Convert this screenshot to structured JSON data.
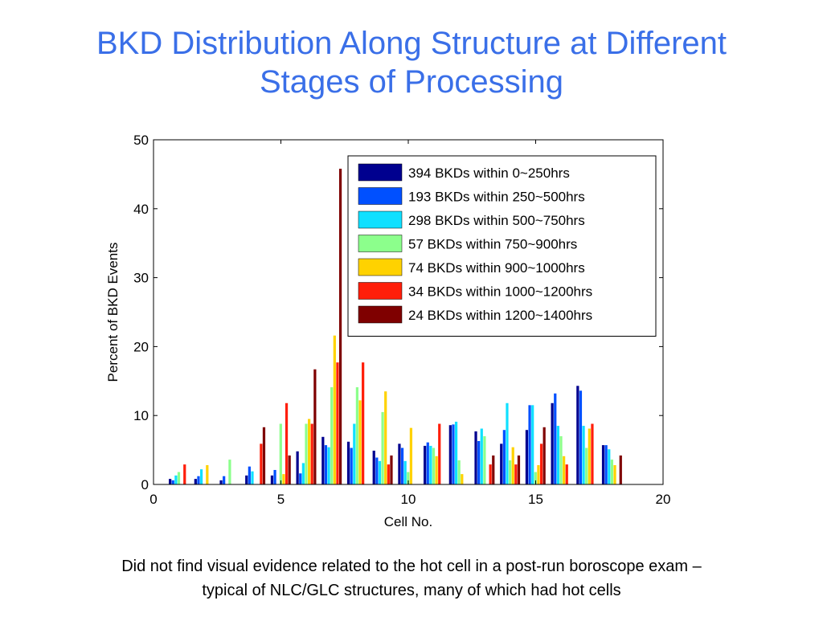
{
  "title": {
    "line1": "BKD Distribution Along Structure at Different",
    "line2": "Stages of Processing"
  },
  "caption": {
    "line1": "Did not find visual evidence related to the hot cell in a post-run boroscope exam –",
    "line2": "typical of NLC/GLC structures, many of which had hot cells"
  },
  "chart_data": {
    "type": "bar",
    "title": "",
    "xlabel": "Cell No.",
    "ylabel": "Percent of BKD Events",
    "xlim": [
      0,
      20
    ],
    "ylim": [
      0,
      50
    ],
    "xticks": [
      "0",
      "5",
      "10",
      "15",
      "20"
    ],
    "yticks": [
      "0",
      "10",
      "20",
      "30",
      "40",
      "50"
    ],
    "grid": false,
    "legend_position": "top-right",
    "categories": [
      1,
      2,
      3,
      4,
      5,
      6,
      7,
      8,
      9,
      10,
      11,
      12,
      13,
      14,
      15,
      16,
      17,
      18
    ],
    "series": [
      {
        "name": "394 BKDs within 0~250hrs",
        "color": "#00008f",
        "values": [
          0.8,
          0.8,
          0.6,
          1.3,
          1.3,
          4.8,
          6.9,
          6.2,
          4.9,
          5.9,
          5.6,
          8.6,
          7.7,
          5.9,
          7.9,
          11.8,
          14.3,
          5.7
        ]
      },
      {
        "name": "193 BKDs within 250~500hrs",
        "color": "#0050ff",
        "values": [
          0.6,
          1.2,
          1.2,
          2.6,
          2.1,
          1.6,
          5.7,
          5.3,
          3.9,
          5.3,
          6.1,
          8.7,
          6.3,
          7.9,
          11.5,
          13.2,
          13.6,
          5.7
        ]
      },
      {
        "name": "298 BKDs within 500~750hrs",
        "color": "#10e0ff",
        "values": [
          1.3,
          2.2,
          0,
          1.9,
          0,
          3.1,
          5.4,
          8.8,
          3.4,
          3.4,
          5.6,
          9.1,
          8.1,
          11.8,
          11.5,
          8.5,
          8.5,
          5.1
        ]
      },
      {
        "name": "57 BKDs within 750~900hrs",
        "color": "#8cff8c",
        "values": [
          1.8,
          0,
          3.6,
          0,
          8.8,
          8.8,
          14.1,
          14.1,
          10.5,
          1.8,
          5.3,
          3.5,
          7.0,
          3.5,
          1.8,
          7.0,
          5.3,
          3.6
        ]
      },
      {
        "name": "74 BKDs within 900~1000hrs",
        "color": "#ffd200",
        "values": [
          0,
          2.8,
          0,
          0,
          1.5,
          9.5,
          21.6,
          12.2,
          13.5,
          8.2,
          4.1,
          1.5,
          0,
          5.4,
          2.8,
          4.1,
          8.1,
          2.8
        ]
      },
      {
        "name": "34 BKDs within 1000~1200hrs",
        "color": "#ff1e0a",
        "values": [
          2.9,
          0,
          0,
          5.9,
          11.8,
          8.8,
          17.7,
          17.7,
          2.9,
          0,
          8.8,
          0,
          2.9,
          2.9,
          5.9,
          2.9,
          8.8,
          0
        ]
      },
      {
        "name": "24 BKDs within 1200~1400hrs",
        "color": "#7f0000",
        "values": [
          0,
          0,
          0,
          8.3,
          4.2,
          16.7,
          45.8,
          0,
          4.2,
          0,
          0,
          0,
          4.2,
          4.2,
          8.3,
          0,
          0,
          4.2
        ]
      }
    ]
  }
}
